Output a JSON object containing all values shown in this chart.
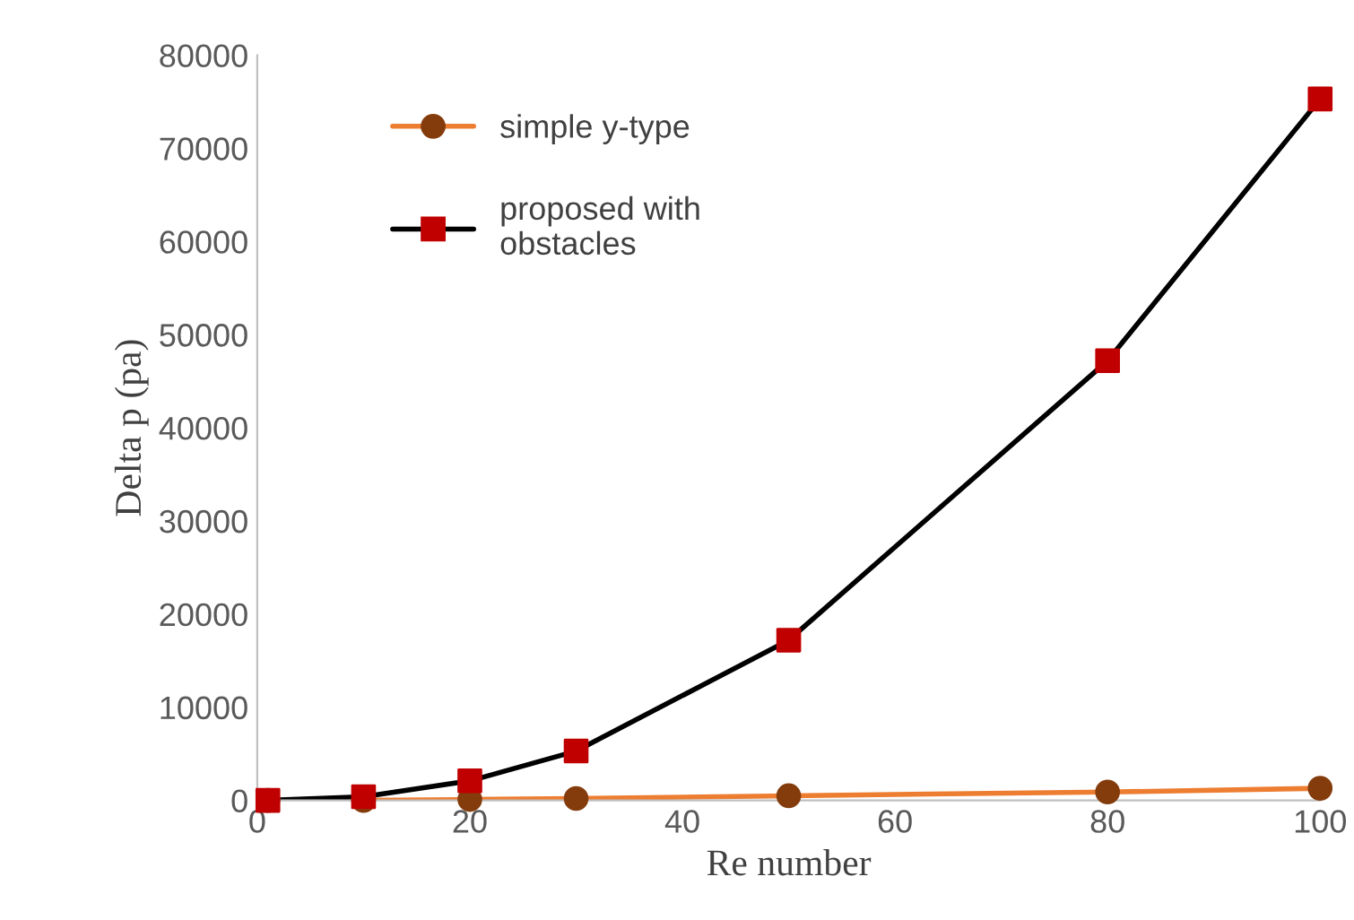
{
  "chart_data": {
    "type": "line",
    "xlabel": "Re number",
    "ylabel": "Delta p (pa)",
    "xlim": [
      0,
      100
    ],
    "xticks": [
      0,
      20,
      40,
      60,
      80,
      100
    ],
    "ylim": [
      0,
      80000
    ],
    "yticks": [
      0,
      10000,
      20000,
      30000,
      40000,
      50000,
      60000,
      70000,
      80000
    ],
    "grid": false,
    "legend": "top left",
    "series": [
      {
        "name": "simple y-type",
        "color": "#ed7d31",
        "colors": [
          "#843c0c",
          "#843c0c",
          "#843c0c",
          "#843c0c",
          "#843c0c",
          "#843c0c",
          "#843c0c"
        ],
        "marker": "circle",
        "x": [
          1,
          10,
          20,
          30,
          50,
          80,
          100
        ],
        "values": [
          0,
          0,
          100,
          200,
          500,
          900,
          1300
        ]
      },
      {
        "name": "proposed with\nobstacles",
        "color": "#000000",
        "colors": [
          "#c00000",
          "#c00000",
          "#c00000",
          "#c00000",
          "#c00000",
          "#c00000",
          "#c00000"
        ],
        "marker": "square",
        "x": [
          1,
          10,
          20,
          30,
          50,
          80,
          100
        ],
        "values": [
          0,
          400,
          2100,
          5300,
          17200,
          47200,
          75300
        ]
      }
    ]
  }
}
